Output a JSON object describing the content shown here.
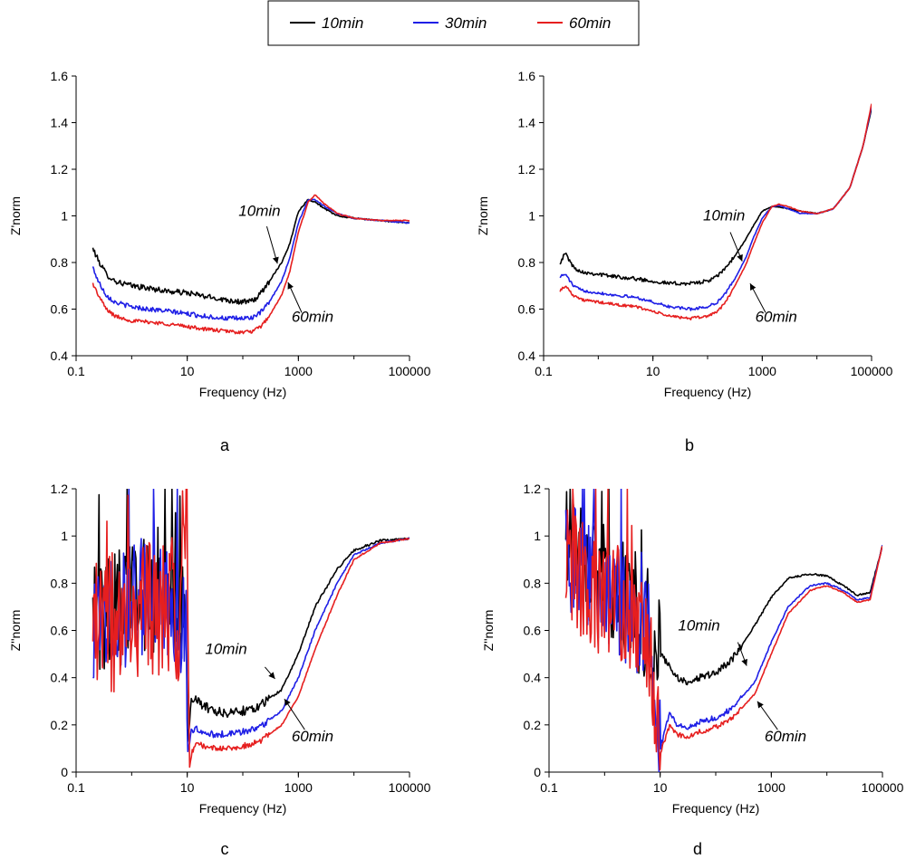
{
  "legend": {
    "items": [
      {
        "label": "10min",
        "color": "#000000"
      },
      {
        "label": "30min",
        "color": "#1f1fe6"
      },
      {
        "label": "60min",
        "color": "#e61f1f"
      }
    ]
  },
  "chart_data": [
    {
      "panel": "a",
      "type": "line",
      "xscale": "log",
      "xlabel": "Frequency (Hz)",
      "ylabel": "Z'norm",
      "xlim": [
        0.1,
        100000
      ],
      "ylim": [
        0.4,
        1.6
      ],
      "xticks": [
        0.1,
        10,
        1000,
        100000
      ],
      "xticklabels": [
        "0.1",
        "10",
        "1000",
        "100000"
      ],
      "yticks": [
        0.4,
        0.6,
        0.8,
        1.0,
        1.2,
        1.4,
        1.6
      ],
      "yticklabels": [
        "0.4",
        "0.6",
        "0.8",
        "1",
        "1.2",
        "1.4",
        "1.6"
      ],
      "series": [
        {
          "name": "10min",
          "color": "#000000",
          "noise": 0.012,
          "x": [
            0.2,
            0.25,
            0.35,
            0.5,
            1,
            2,
            5,
            10,
            20,
            50,
            100,
            150,
            200,
            300,
            500,
            700,
            1000,
            1500,
            2000,
            3000,
            5000,
            10000,
            30000,
            100000
          ],
          "y": [
            0.86,
            0.81,
            0.75,
            0.72,
            0.7,
            0.69,
            0.675,
            0.67,
            0.655,
            0.64,
            0.63,
            0.635,
            0.66,
            0.72,
            0.8,
            0.88,
            1.02,
            1.07,
            1.06,
            1.03,
            1.0,
            0.99,
            0.98,
            0.97
          ]
        },
        {
          "name": "30min",
          "color": "#1f1fe6",
          "noise": 0.01,
          "x": [
            0.2,
            0.25,
            0.35,
            0.5,
            1,
            2,
            5,
            10,
            20,
            50,
            100,
            150,
            200,
            300,
            500,
            700,
            1000,
            1500,
            2000,
            3000,
            5000,
            10000,
            30000,
            100000
          ],
          "y": [
            0.78,
            0.72,
            0.66,
            0.63,
            0.61,
            0.6,
            0.59,
            0.58,
            0.57,
            0.56,
            0.56,
            0.565,
            0.58,
            0.63,
            0.72,
            0.82,
            0.97,
            1.07,
            1.07,
            1.04,
            1.01,
            0.99,
            0.98,
            0.97
          ]
        },
        {
          "name": "60min",
          "color": "#e61f1f",
          "noise": 0.008,
          "x": [
            0.2,
            0.25,
            0.35,
            0.5,
            1,
            2,
            5,
            10,
            20,
            50,
            100,
            150,
            200,
            300,
            500,
            700,
            1000,
            1500,
            2000,
            3000,
            5000,
            10000,
            30000,
            100000
          ],
          "y": [
            0.71,
            0.66,
            0.6,
            0.57,
            0.55,
            0.545,
            0.535,
            0.525,
            0.515,
            0.505,
            0.5,
            0.505,
            0.52,
            0.57,
            0.66,
            0.76,
            0.93,
            1.06,
            1.09,
            1.05,
            1.01,
            0.99,
            0.98,
            0.98
          ]
        }
      ],
      "annotations": [
        {
          "text": "10min",
          "text_x": 200,
          "text_y": 1.0,
          "arrow_from": [
            270,
            0.955
          ],
          "arrow_to": [
            420,
            0.795
          ]
        },
        {
          "text": "60min",
          "text_x": 1800,
          "text_y": 0.545,
          "arrow_from": [
            1150,
            0.585
          ],
          "arrow_to": [
            650,
            0.715
          ]
        }
      ],
      "panel_label": "a"
    },
    {
      "panel": "b",
      "type": "line",
      "xscale": "log",
      "xlabel": "Frequency (Hz)",
      "ylabel": "Z'norm",
      "xlim": [
        0.1,
        100000
      ],
      "ylim": [
        0.4,
        1.6
      ],
      "xticks": [
        0.1,
        10,
        1000,
        100000
      ],
      "xticklabels": [
        "0.1",
        "10",
        "1000",
        "100000"
      ],
      "yticks": [
        0.4,
        0.6,
        0.8,
        1.0,
        1.2,
        1.4,
        1.6
      ],
      "yticklabels": [
        "0.4",
        "0.6",
        "0.8",
        "1",
        "1.2",
        "1.4",
        "1.6"
      ],
      "series": [
        {
          "name": "10min",
          "color": "#000000",
          "noise": 0.008,
          "x": [
            0.2,
            0.25,
            0.35,
            0.5,
            1,
            2,
            5,
            10,
            20,
            50,
            100,
            150,
            200,
            300,
            500,
            700,
            1000,
            1500,
            2000,
            3000,
            5000,
            10000,
            20000,
            40000,
            70000,
            100000
          ],
          "y": [
            0.8,
            0.84,
            0.78,
            0.76,
            0.75,
            0.74,
            0.73,
            0.72,
            0.71,
            0.71,
            0.72,
            0.74,
            0.77,
            0.82,
            0.9,
            0.96,
            1.02,
            1.04,
            1.04,
            1.03,
            1.02,
            1.01,
            1.03,
            1.12,
            1.3,
            1.46
          ]
        },
        {
          "name": "30min",
          "color": "#1f1fe6",
          "noise": 0.006,
          "x": [
            0.2,
            0.25,
            0.35,
            0.5,
            1,
            2,
            5,
            10,
            20,
            50,
            100,
            150,
            200,
            300,
            500,
            700,
            1000,
            1500,
            2000,
            3000,
            5000,
            10000,
            20000,
            40000,
            70000,
            100000
          ],
          "y": [
            0.74,
            0.75,
            0.7,
            0.68,
            0.67,
            0.66,
            0.65,
            0.63,
            0.61,
            0.6,
            0.61,
            0.63,
            0.66,
            0.72,
            0.82,
            0.91,
            0.99,
            1.04,
            1.045,
            1.03,
            1.01,
            1.01,
            1.03,
            1.12,
            1.3,
            1.47
          ]
        },
        {
          "name": "60min",
          "color": "#e61f1f",
          "noise": 0.006,
          "x": [
            0.2,
            0.25,
            0.35,
            0.5,
            1,
            2,
            5,
            10,
            20,
            50,
            100,
            150,
            200,
            300,
            500,
            700,
            1000,
            1500,
            2000,
            3000,
            5000,
            10000,
            20000,
            40000,
            70000,
            100000
          ],
          "y": [
            0.68,
            0.7,
            0.66,
            0.64,
            0.63,
            0.62,
            0.61,
            0.59,
            0.57,
            0.56,
            0.57,
            0.59,
            0.62,
            0.69,
            0.79,
            0.88,
            0.97,
            1.04,
            1.05,
            1.04,
            1.02,
            1.01,
            1.03,
            1.12,
            1.3,
            1.48
          ]
        }
      ],
      "annotations": [
        {
          "text": "10min",
          "text_x": 200,
          "text_y": 0.98,
          "arrow_from": [
            260,
            0.93
          ],
          "arrow_to": [
            430,
            0.805
          ]
        },
        {
          "text": "60min",
          "text_x": 1800,
          "text_y": 0.545,
          "arrow_from": [
            1150,
            0.585
          ],
          "arrow_to": [
            600,
            0.71
          ]
        }
      ],
      "panel_label": "b"
    },
    {
      "panel": "c",
      "type": "line",
      "xscale": "log",
      "xlabel": "Frequency (Hz)",
      "ylabel": "Z''norm",
      "xlim": [
        0.1,
        100000
      ],
      "ylim": [
        0,
        1.2
      ],
      "xticks": [
        0.1,
        10,
        1000,
        100000
      ],
      "xticklabels": [
        "0.1",
        "10",
        "1000",
        "100000"
      ],
      "yticks": [
        0,
        0.2,
        0.4,
        0.6,
        0.8,
        1.0,
        1.2
      ],
      "yticklabels": [
        "0",
        "0.2",
        "0.4",
        "0.6",
        "0.8",
        "1",
        "1.2"
      ],
      "series": [
        {
          "name": "10min",
          "color": "#000000",
          "noise": 0.02,
          "spike_until": 10,
          "spike_amp": 0.25,
          "x": [
            0.2,
            0.3,
            0.5,
            1,
            2,
            3,
            5,
            7,
            9.5,
            10,
            12,
            15,
            20,
            30,
            50,
            100,
            200,
            500,
            1000,
            2000,
            5000,
            10000,
            30000,
            100000
          ],
          "y": [
            0.62,
            0.64,
            0.68,
            0.72,
            0.78,
            0.75,
            0.7,
            0.68,
            0.6,
            0.08,
            0.32,
            0.3,
            0.28,
            0.26,
            0.25,
            0.26,
            0.28,
            0.35,
            0.5,
            0.7,
            0.86,
            0.94,
            0.98,
            0.99
          ]
        },
        {
          "name": "30min",
          "color": "#1f1fe6",
          "noise": 0.015,
          "spike_until": 10,
          "spike_amp": 0.25,
          "x": [
            0.2,
            0.3,
            0.5,
            1,
            2,
            3,
            5,
            7,
            9.5,
            10,
            12,
            15,
            20,
            30,
            50,
            100,
            200,
            500,
            1000,
            2000,
            5000,
            10000,
            30000,
            100000
          ],
          "y": [
            0.6,
            0.62,
            0.66,
            0.7,
            0.76,
            0.73,
            0.7,
            0.66,
            0.58,
            0.06,
            0.18,
            0.18,
            0.17,
            0.16,
            0.16,
            0.17,
            0.19,
            0.26,
            0.4,
            0.6,
            0.8,
            0.92,
            0.97,
            0.99
          ]
        },
        {
          "name": "60min",
          "color": "#e61f1f",
          "noise": 0.012,
          "spike_until": 11,
          "spike_amp": 0.3,
          "x": [
            0.2,
            0.3,
            0.5,
            1,
            2,
            3,
            5,
            7,
            9.5,
            10,
            11,
            12,
            15,
            20,
            30,
            50,
            100,
            200,
            500,
            1000,
            2000,
            5000,
            10000,
            30000,
            100000
          ],
          "y": [
            0.58,
            0.6,
            0.64,
            0.68,
            0.72,
            0.7,
            0.66,
            0.64,
            1.2,
            1.2,
            0.02,
            0.08,
            0.12,
            0.11,
            0.1,
            0.1,
            0.11,
            0.13,
            0.2,
            0.32,
            0.52,
            0.75,
            0.9,
            0.97,
            0.99
          ]
        }
      ],
      "annotations": [
        {
          "text": "10min",
          "text_x": 50,
          "text_y": 0.5,
          "arrow_from": [
            250,
            0.445
          ],
          "arrow_to": [
            380,
            0.395
          ]
        },
        {
          "text": "60min",
          "text_x": 1800,
          "text_y": 0.13,
          "arrow_from": [
            1300,
            0.18
          ],
          "arrow_to": [
            560,
            0.31
          ]
        }
      ],
      "panel_label": "c"
    },
    {
      "panel": "d",
      "type": "line",
      "xscale": "log",
      "xlabel": "Frequency (Hz)",
      "ylabel": "Z''norm",
      "xlim": [
        0.1,
        100000
      ],
      "ylim": [
        0,
        1.2
      ],
      "xticks": [
        0.1,
        10,
        1000,
        100000
      ],
      "xticklabels": [
        "0.1",
        "10",
        "1000",
        "100000"
      ],
      "yticks": [
        0,
        0.2,
        0.4,
        0.6,
        0.8,
        1.0,
        1.2
      ],
      "yticklabels": [
        "0",
        "0.2",
        "0.4",
        "0.6",
        "0.8",
        "1",
        "1.2"
      ],
      "series": [
        {
          "name": "10min",
          "color": "#000000",
          "noise": 0.015,
          "spike_until": 10,
          "spike_amp": 0.25,
          "x": [
            0.2,
            0.3,
            0.5,
            1,
            2,
            3,
            5,
            7,
            10,
            15,
            20,
            30,
            50,
            100,
            200,
            500,
            1000,
            2000,
            5000,
            10000,
            20000,
            35000,
            60000,
            100000
          ],
          "y": [
            1.0,
            0.95,
            0.85,
            0.8,
            0.75,
            0.7,
            0.65,
            0.6,
            0.5,
            0.45,
            0.4,
            0.38,
            0.4,
            0.42,
            0.48,
            0.62,
            0.74,
            0.82,
            0.84,
            0.83,
            0.79,
            0.75,
            0.76,
            0.96
          ]
        },
        {
          "name": "30min",
          "color": "#1f1fe6",
          "noise": 0.012,
          "spike_until": 10,
          "spike_amp": 0.25,
          "x": [
            0.2,
            0.3,
            0.5,
            1,
            2,
            3,
            5,
            7,
            10,
            15,
            20,
            30,
            50,
            100,
            200,
            500,
            1000,
            2000,
            5000,
            10000,
            20000,
            35000,
            60000,
            100000
          ],
          "y": [
            0.95,
            0.9,
            0.82,
            0.78,
            0.72,
            0.68,
            0.62,
            0.55,
            0.1,
            0.25,
            0.2,
            0.19,
            0.21,
            0.23,
            0.27,
            0.38,
            0.55,
            0.7,
            0.79,
            0.8,
            0.77,
            0.73,
            0.74,
            0.96
          ]
        },
        {
          "name": "60min",
          "color": "#e61f1f",
          "noise": 0.01,
          "spike_until": 10,
          "spike_amp": 0.25,
          "x": [
            0.2,
            0.3,
            0.5,
            1,
            2,
            3,
            5,
            7,
            10,
            15,
            20,
            30,
            50,
            100,
            200,
            500,
            1000,
            2000,
            5000,
            10000,
            20000,
            35000,
            60000,
            100000
          ],
          "y": [
            0.9,
            0.85,
            0.78,
            0.74,
            0.7,
            0.65,
            0.58,
            0.5,
            0.08,
            0.2,
            0.16,
            0.15,
            0.17,
            0.19,
            0.23,
            0.33,
            0.5,
            0.67,
            0.77,
            0.79,
            0.76,
            0.72,
            0.73,
            0.96
          ]
        }
      ],
      "annotations": [
        {
          "text": "10min",
          "text_x": 50,
          "text_y": 0.6,
          "arrow_from": [
            250,
            0.55
          ],
          "arrow_to": [
            360,
            0.45
          ]
        },
        {
          "text": "60min",
          "text_x": 1800,
          "text_y": 0.13,
          "arrow_from": [
            1300,
            0.18
          ],
          "arrow_to": [
            560,
            0.3
          ]
        }
      ],
      "panel_label": "d"
    }
  ]
}
